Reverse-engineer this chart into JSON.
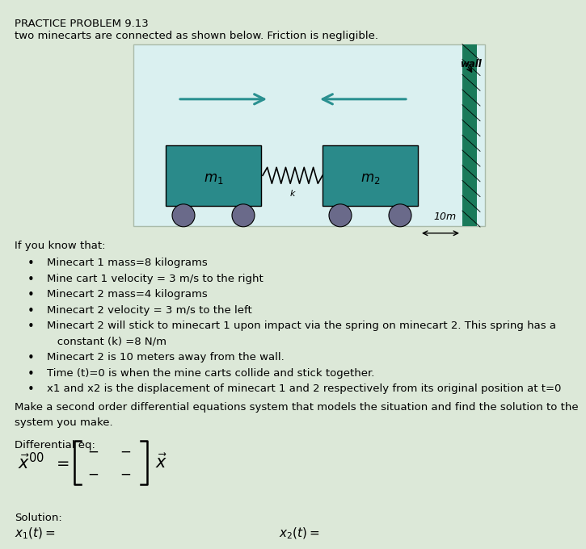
{
  "bg_color": "#dce8d8",
  "diagram_bg": "#daf0f0",
  "title_line1": "PRACTICE PROBLEM 9.13",
  "title_line2": "two minecarts are connected as shown below. Friction is negligible.",
  "bullet_points": [
    "Minecart 1 mass=8 kilograms",
    "Mine cart 1 velocity = 3 m/s to the right",
    "Minecart 2 mass=4 kilograms",
    "Minecart 2 velocity = 3 m/s to the left",
    "Minecart 2 will stick to minecart 1 upon impact via the spring on minecart 2. This spring has a",
    "   constant (k) =8 N/m",
    "Minecart 2 is 10 meters away from the wall.",
    "Time (t)=0 is when the mine carts collide and stick together.",
    "x1 and x2 is the displacement of minecart 1 and 2 respectively from its original position at t=0"
  ],
  "bullet_flags": [
    true,
    true,
    true,
    true,
    true,
    false,
    true,
    true,
    true
  ],
  "make_text1": "Make a second order differential equations system that models the situation and find the solution to the",
  "make_text2": "system you make.",
  "diff_eq_label": "Differential eq:",
  "solution_label": "Solution:",
  "cart_color": "#2a8a8a",
  "wall_color": "#1a7a5a",
  "arrow_color": "#2a9090",
  "wheel_color": "#6a6a8a"
}
